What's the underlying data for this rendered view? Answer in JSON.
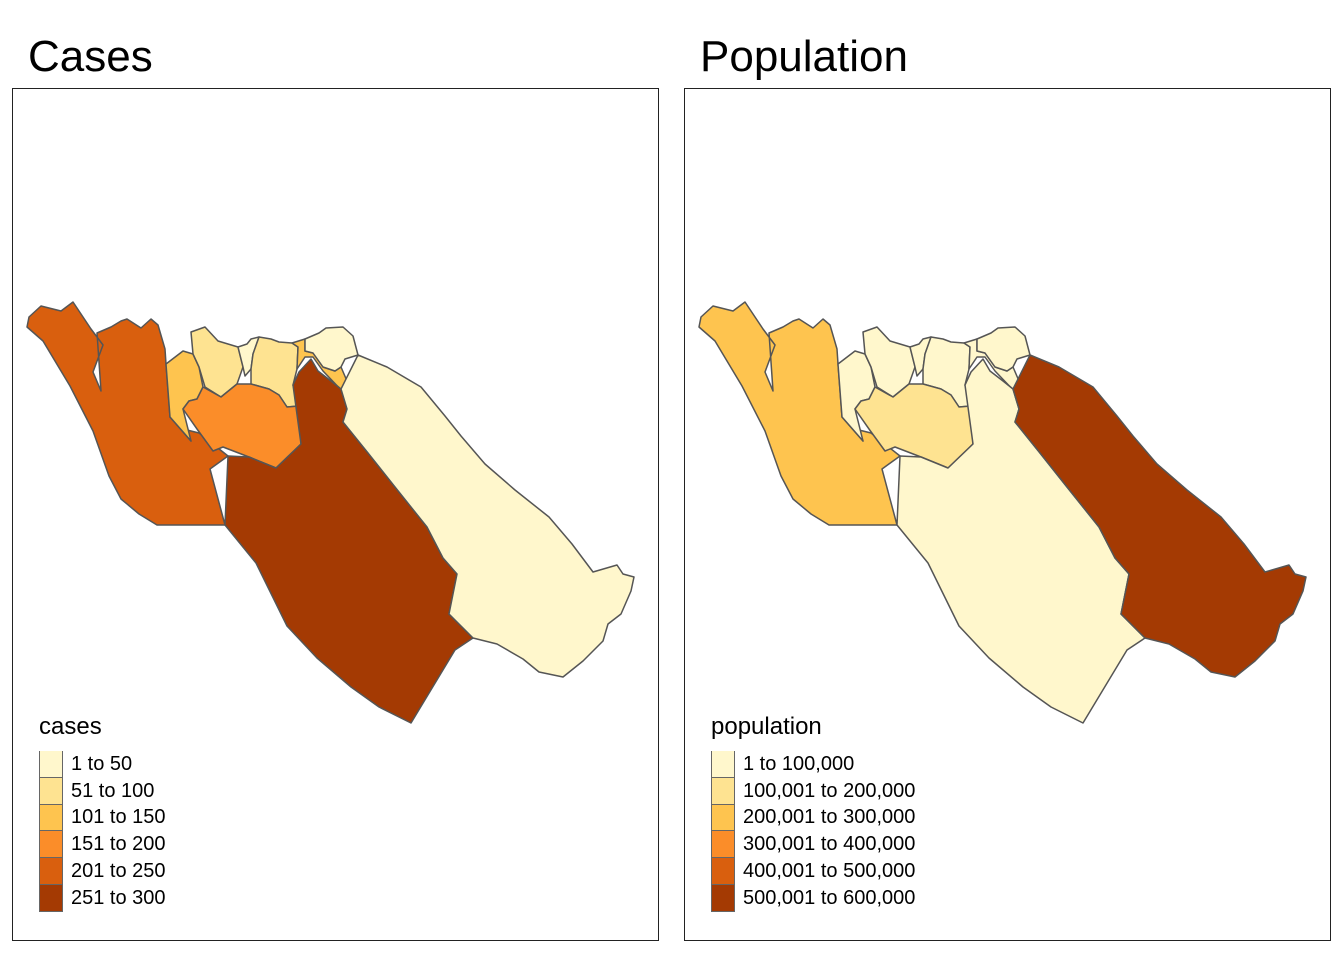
{
  "palette": [
    "#FFF7CC",
    "#FEE391",
    "#FEC44F",
    "#FB8D29",
    "#D95F0E",
    "#A43A03"
  ],
  "panels": [
    {
      "title": "Cases",
      "legend": {
        "title": "cases",
        "classes": [
          "1 to 50",
          "51 to 100",
          "101 to 150",
          "151 to 200",
          "201 to 250",
          "251 to 300"
        ]
      },
      "regions": [
        {
          "id": "west-coast",
          "class_index": 4
        },
        {
          "id": "west-inner",
          "class_index": 2
        },
        {
          "id": "north-1",
          "class_index": 1
        },
        {
          "id": "north-2",
          "class_index": 0
        },
        {
          "id": "north-3",
          "class_index": 1
        },
        {
          "id": "north-4",
          "class_index": 2
        },
        {
          "id": "north-5",
          "class_index": 0
        },
        {
          "id": "central-mid",
          "class_index": 3
        },
        {
          "id": "south-central",
          "class_index": 5
        },
        {
          "id": "east",
          "class_index": 0
        }
      ]
    },
    {
      "title": "Population",
      "legend": {
        "title": "population",
        "classes": [
          "1 to 100,000",
          "100,001 to 200,000",
          "200,001 to 300,000",
          "300,001 to 400,000",
          "400,001 to 500,000",
          "500,001 to 600,000"
        ]
      },
      "regions": [
        {
          "id": "west-coast",
          "class_index": 2
        },
        {
          "id": "west-inner",
          "class_index": 0
        },
        {
          "id": "north-1",
          "class_index": 0
        },
        {
          "id": "north-2",
          "class_index": 0
        },
        {
          "id": "north-3",
          "class_index": 0
        },
        {
          "id": "north-4",
          "class_index": 0
        },
        {
          "id": "north-5",
          "class_index": 0
        },
        {
          "id": "central-mid",
          "class_index": 1
        },
        {
          "id": "south-central",
          "class_index": 0
        },
        {
          "id": "east",
          "class_index": 5
        }
      ]
    }
  ]
}
